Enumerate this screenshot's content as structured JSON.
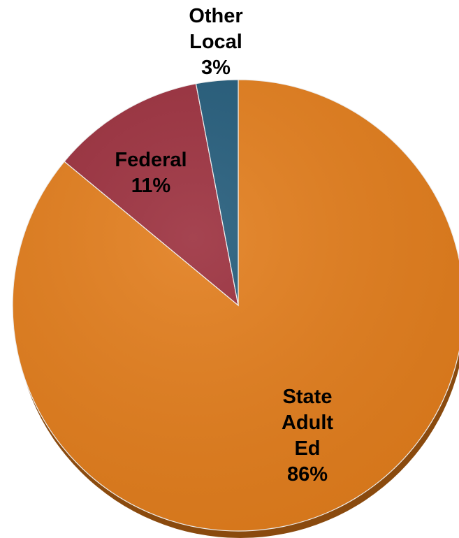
{
  "chart_data": {
    "type": "pie",
    "title": "",
    "slices": [
      {
        "label_lines": [
          "State",
          "Adult",
          "Ed"
        ],
        "value": 86,
        "value_label": "86%",
        "color": "#E27D1C"
      },
      {
        "label_lines": [
          "Federal"
        ],
        "value": 11,
        "value_label": "11%",
        "color": "#9B2F3D"
      },
      {
        "label_lines": [
          "Other",
          "Local"
        ],
        "value": 3,
        "value_label": "3%",
        "color": "#235B7A"
      }
    ],
    "start_angle_deg": 0,
    "direction": "clockwise",
    "shadow_color": "#8A4A0E"
  }
}
